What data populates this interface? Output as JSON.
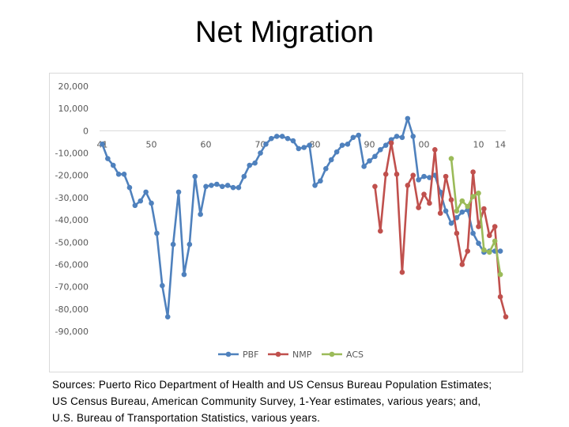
{
  "title": "Net Migration",
  "sources": {
    "line1": "Sources: Puerto Rico Department of Health and US Census Bureau Population Estimates;",
    "line2": "US Census Bureau, American Community Survey, 1-Year estimates, various years; and,",
    "line3": "U.S. Bureau of Transportation Statistics, various years."
  },
  "colors": {
    "PBF": "#4f81bd",
    "NMP": "#c0504d",
    "ACS": "#9bbb59"
  },
  "chart_data": {
    "type": "line",
    "title": "Net Migration",
    "xlabel": "",
    "ylabel": "",
    "ylim": [
      -90000,
      20000
    ],
    "xlim": [
      1940.5,
      2015
    ],
    "yticks": [
      20000,
      10000,
      0,
      -10000,
      -20000,
      -30000,
      -40000,
      -50000,
      -60000,
      -70000,
      -80000,
      -90000
    ],
    "ytick_labels": [
      "20,000",
      "10,000",
      "0",
      "-10,000",
      "-20,000",
      "-30,000",
      "-40,000",
      "-50,000",
      "-60,000",
      "-70,000",
      "-80,000",
      "-90,000"
    ],
    "xticks": [
      {
        "year": 1941,
        "label": "41"
      },
      {
        "year": 1950,
        "label": "50"
      },
      {
        "year": 1960,
        "label": "60"
      },
      {
        "year": 1970,
        "label": "70"
      },
      {
        "year": 1980,
        "label": "80"
      },
      {
        "year": 1990,
        "label": "90"
      },
      {
        "year": 2000,
        "label": "00"
      },
      {
        "year": 2010,
        "label": "10"
      },
      {
        "year": 2014,
        "label": "14"
      }
    ],
    "legend_position": "bottom",
    "series": [
      {
        "name": "PBF",
        "x": [
          1941,
          1942,
          1943,
          1944,
          1945,
          1946,
          1947,
          1948,
          1949,
          1950,
          1951,
          1952,
          1953,
          1954,
          1955,
          1956,
          1957,
          1958,
          1959,
          1960,
          1961,
          1962,
          1963,
          1964,
          1965,
          1966,
          1967,
          1968,
          1969,
          1970,
          1971,
          1972,
          1973,
          1974,
          1975,
          1976,
          1977,
          1978,
          1979,
          1980,
          1981,
          1982,
          1983,
          1984,
          1985,
          1986,
          1987,
          1988,
          1989,
          1990,
          1991,
          1992,
          1993,
          1994,
          1995,
          1996,
          1997,
          1998,
          1999,
          2000,
          2001,
          2002,
          2003,
          2004,
          2005,
          2006,
          2007,
          2008,
          2009,
          2010,
          2011,
          2012,
          2013,
          2014
        ],
        "values": [
          -6000,
          -12500,
          -15500,
          -19500,
          -19500,
          -25500,
          -33500,
          -31500,
          -27500,
          -32500,
          -46000,
          -69500,
          -83500,
          -51000,
          -27500,
          -64500,
          -51000,
          -20500,
          -37500,
          -25000,
          -24500,
          -24000,
          -25000,
          -24500,
          -25500,
          -25500,
          -20500,
          -15500,
          -14500,
          -10000,
          -6000,
          -3500,
          -2500,
          -2500,
          -3500,
          -4500,
          -8000,
          -7500,
          -6500,
          -24500,
          -22500,
          -17000,
          -13000,
          -9500,
          -6500,
          -6000,
          -3000,
          -2000,
          -16000,
          -13500,
          -11500,
          -8500,
          -6500,
          -4000,
          -2500,
          -3000,
          5500,
          -2500,
          -22000,
          -20500,
          -21000,
          -20000,
          -27500,
          -36000,
          -41500,
          -39000,
          -36500,
          -35500,
          -46000,
          -50500,
          -54500,
          -54000,
          -54000,
          -54000
        ]
      },
      {
        "name": "NMP",
        "x": [
          1991,
          1992,
          1993,
          1994,
          1995,
          1996,
          1997,
          1998,
          1999,
          2000,
          2001,
          2002,
          2003,
          2004,
          2005,
          2006,
          2007,
          2008,
          2009,
          2010,
          2011,
          2012,
          2013,
          2014,
          2015
        ],
        "values": [
          -25000,
          -45000,
          -19500,
          -5500,
          -19500,
          -63500,
          -24500,
          -20000,
          -34500,
          -28500,
          -32500,
          -8500,
          -37000,
          -20500,
          -31000,
          -46000,
          -60000,
          -54000,
          -18500,
          -43000,
          -35000,
          -47000,
          -43000,
          -74500,
          -83500
        ]
      },
      {
        "name": "ACS",
        "x": [
          2005,
          2006,
          2007,
          2008,
          2009,
          2010,
          2011,
          2012,
          2013,
          2014
        ],
        "values": [
          -12500,
          -36000,
          -31500,
          -34000,
          -29500,
          -28000,
          -53500,
          -54500,
          -49500,
          -64500
        ]
      }
    ]
  }
}
